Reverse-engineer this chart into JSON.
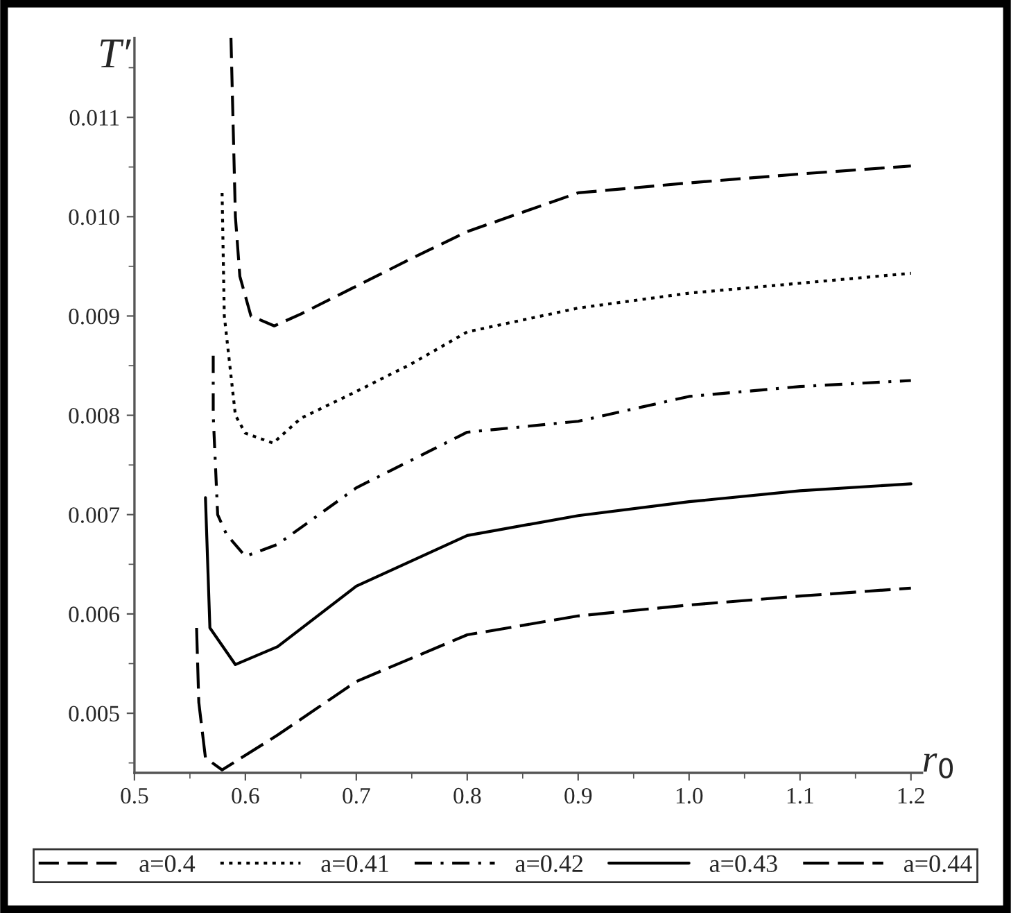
{
  "chart_data": {
    "type": "line",
    "xlabel": "r$_{0}$",
    "ylabel": "T′",
    "xlim": [
      0.5,
      1.21
    ],
    "ylim": [
      0.0044,
      0.0118
    ],
    "xticks": [
      0.5,
      0.6,
      0.7,
      0.8,
      0.9,
      {
        "value": 1.0,
        "label": "1.0"
      },
      1.1,
      1.2
    ],
    "yticks": [
      0.005,
      0.006,
      0.007,
      0.008,
      0.009,
      {
        "value": 0.01,
        "label": "0.010"
      },
      0.011
    ],
    "grid": false,
    "legend": "bottom",
    "marker": "none",
    "series": [
      {
        "name": "a=0.4",
        "color": "#000000",
        "line_style": "dashed",
        "x": [
          0.587,
          0.591,
          0.595,
          0.605,
          0.626,
          0.65,
          0.7,
          0.75,
          0.8,
          0.9,
          1.0,
          1.1,
          1.2
        ],
        "values": [
          0.0118,
          0.01,
          0.0094,
          0.009,
          0.0089,
          0.00902,
          0.0093,
          0.00958,
          0.00985,
          0.01024,
          0.01034,
          0.01043,
          0.01051
        ]
      },
      {
        "name": "a=0.41",
        "color": "#000000",
        "line_style": "dotted",
        "x": [
          0.579,
          0.581,
          0.591,
          0.6,
          0.625,
          0.65,
          0.7,
          0.75,
          0.8,
          0.9,
          1.0,
          1.1,
          1.2
        ],
        "values": [
          0.01024,
          0.009,
          0.008,
          0.00782,
          0.00772,
          0.00797,
          0.00824,
          0.00852,
          0.00884,
          0.00908,
          0.00923,
          0.00933,
          0.00943
        ]
      },
      {
        "name": "a=0.42",
        "color": "#000000",
        "line_style": "dashdot",
        "x": [
          0.571,
          0.571,
          0.575,
          0.583,
          0.6,
          0.629,
          0.7,
          0.8,
          0.9,
          1.0,
          1.1,
          1.2
        ],
        "values": [
          0.0086,
          0.008,
          0.007,
          0.0068,
          0.00658,
          0.0067,
          0.00727,
          0.00783,
          0.00794,
          0.00819,
          0.00829,
          0.00835
        ]
      },
      {
        "name": "a=0.43",
        "color": "#000000",
        "line_style": "solid",
        "x": [
          0.564,
          0.568,
          0.591,
          0.629,
          0.7,
          0.8,
          0.9,
          1.0,
          1.1,
          1.2
        ],
        "values": [
          0.00717,
          0.00586,
          0.00549,
          0.00567,
          0.00628,
          0.00679,
          0.00699,
          0.00713,
          0.00724,
          0.00731
        ]
      },
      {
        "name": "a=0.44",
        "color": "#000000",
        "line_style": "longdash",
        "x": [
          0.556,
          0.558,
          0.564,
          0.579,
          0.629,
          0.7,
          0.8,
          0.9,
          1.0,
          1.1,
          1.2
        ],
        "values": [
          0.00586,
          0.00511,
          0.00455,
          0.00443,
          0.00478,
          0.00532,
          0.00579,
          0.00598,
          0.00609,
          0.00618,
          0.00626
        ]
      }
    ]
  }
}
